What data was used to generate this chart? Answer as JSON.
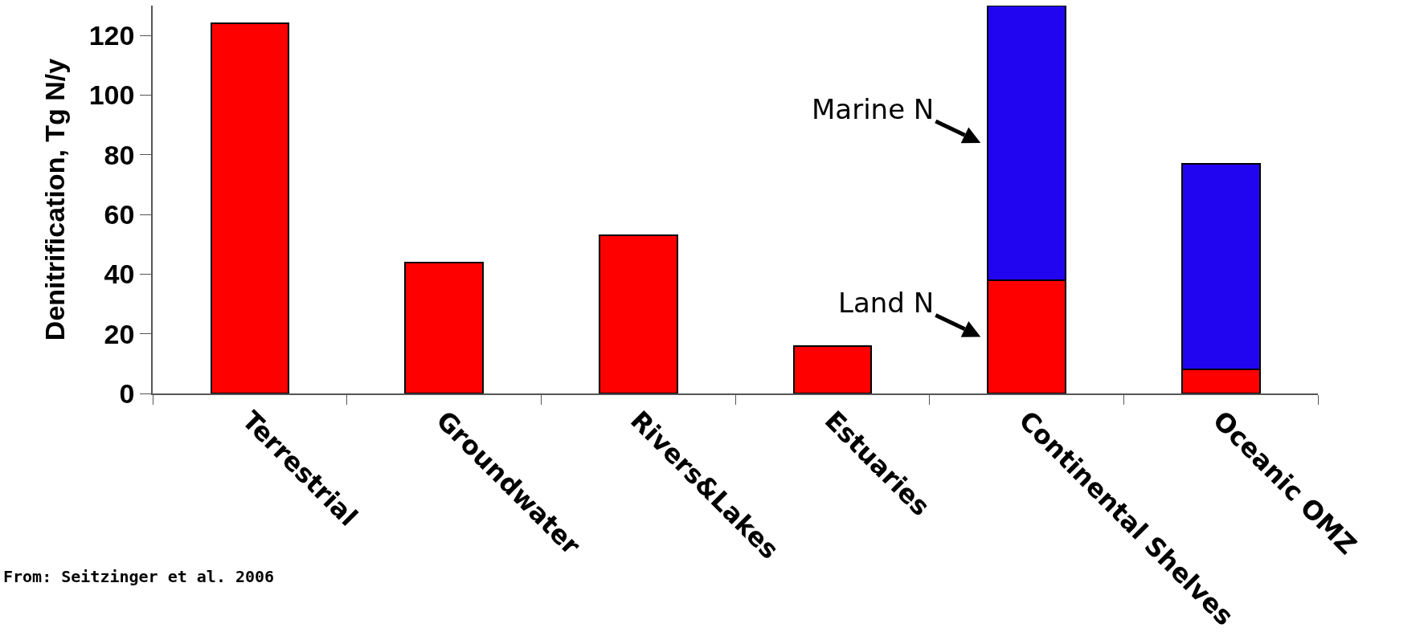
{
  "chart_data": {
    "type": "bar",
    "stacked": true,
    "ylabel": "Denitrification, Tg N/y",
    "categories": [
      "Terrestrial",
      "Groundwater",
      "Rivers&Lakes",
      "Estuaries",
      "Continental Shelves",
      "Oceanic OMZ"
    ],
    "series": [
      {
        "name": "Land N",
        "color": "#ff0000",
        "values": [
          124,
          44,
          53,
          16,
          38,
          8
        ]
      },
      {
        "name": "Marine N",
        "color": "#2205f0",
        "values": [
          null,
          null,
          null,
          null,
          92,
          69
        ]
      }
    ],
    "ylim": [
      0,
      130
    ],
    "yticks": [
      0,
      20,
      40,
      60,
      80,
      100,
      120
    ],
    "grid": false,
    "annotations": [
      "From: Seitzinger et al. 2006"
    ]
  }
}
